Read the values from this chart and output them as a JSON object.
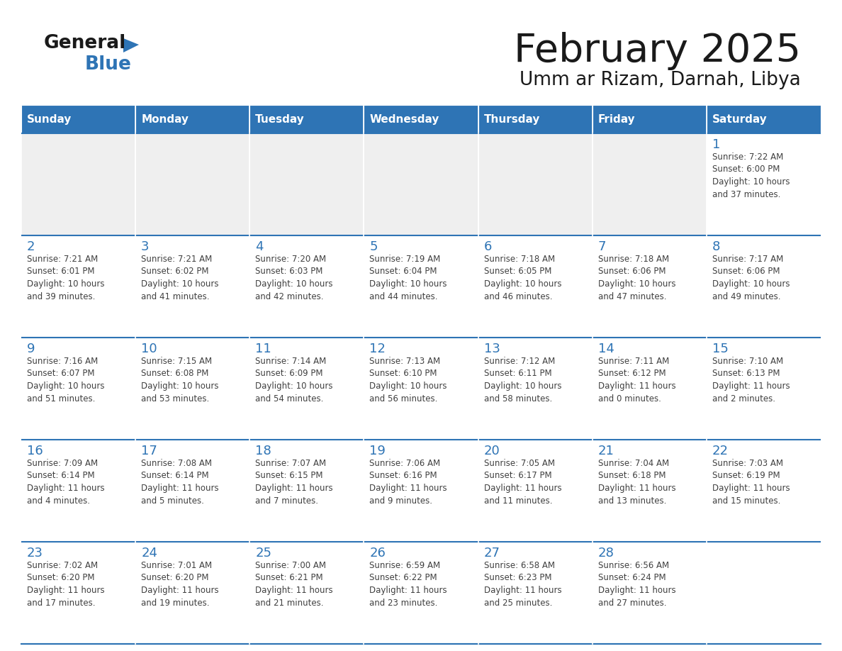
{
  "title": "February 2025",
  "subtitle": "Umm ar Rizam, Darnah, Libya",
  "header_bg": "#2E74B5",
  "header_text_color": "#FFFFFF",
  "cell_bg_white": "#FFFFFF",
  "cell_bg_gray": "#EFEFEF",
  "day_number_color": "#2E74B5",
  "text_color": "#404040",
  "border_color": "#2E74B5",
  "line_color": "#2E74B5",
  "days_of_week": [
    "Sunday",
    "Monday",
    "Tuesday",
    "Wednesday",
    "Thursday",
    "Friday",
    "Saturday"
  ],
  "calendar_data": [
    [
      null,
      null,
      null,
      null,
      null,
      null,
      {
        "day": 1,
        "sunrise": "7:22 AM",
        "sunset": "6:00 PM",
        "daylight": "10 hours\nand 37 minutes."
      }
    ],
    [
      {
        "day": 2,
        "sunrise": "7:21 AM",
        "sunset": "6:01 PM",
        "daylight": "10 hours\nand 39 minutes."
      },
      {
        "day": 3,
        "sunrise": "7:21 AM",
        "sunset": "6:02 PM",
        "daylight": "10 hours\nand 41 minutes."
      },
      {
        "day": 4,
        "sunrise": "7:20 AM",
        "sunset": "6:03 PM",
        "daylight": "10 hours\nand 42 minutes."
      },
      {
        "day": 5,
        "sunrise": "7:19 AM",
        "sunset": "6:04 PM",
        "daylight": "10 hours\nand 44 minutes."
      },
      {
        "day": 6,
        "sunrise": "7:18 AM",
        "sunset": "6:05 PM",
        "daylight": "10 hours\nand 46 minutes."
      },
      {
        "day": 7,
        "sunrise": "7:18 AM",
        "sunset": "6:06 PM",
        "daylight": "10 hours\nand 47 minutes."
      },
      {
        "day": 8,
        "sunrise": "7:17 AM",
        "sunset": "6:06 PM",
        "daylight": "10 hours\nand 49 minutes."
      }
    ],
    [
      {
        "day": 9,
        "sunrise": "7:16 AM",
        "sunset": "6:07 PM",
        "daylight": "10 hours\nand 51 minutes."
      },
      {
        "day": 10,
        "sunrise": "7:15 AM",
        "sunset": "6:08 PM",
        "daylight": "10 hours\nand 53 minutes."
      },
      {
        "day": 11,
        "sunrise": "7:14 AM",
        "sunset": "6:09 PM",
        "daylight": "10 hours\nand 54 minutes."
      },
      {
        "day": 12,
        "sunrise": "7:13 AM",
        "sunset": "6:10 PM",
        "daylight": "10 hours\nand 56 minutes."
      },
      {
        "day": 13,
        "sunrise": "7:12 AM",
        "sunset": "6:11 PM",
        "daylight": "10 hours\nand 58 minutes."
      },
      {
        "day": 14,
        "sunrise": "7:11 AM",
        "sunset": "6:12 PM",
        "daylight": "11 hours\nand 0 minutes."
      },
      {
        "day": 15,
        "sunrise": "7:10 AM",
        "sunset": "6:13 PM",
        "daylight": "11 hours\nand 2 minutes."
      }
    ],
    [
      {
        "day": 16,
        "sunrise": "7:09 AM",
        "sunset": "6:14 PM",
        "daylight": "11 hours\nand 4 minutes."
      },
      {
        "day": 17,
        "sunrise": "7:08 AM",
        "sunset": "6:14 PM",
        "daylight": "11 hours\nand 5 minutes."
      },
      {
        "day": 18,
        "sunrise": "7:07 AM",
        "sunset": "6:15 PM",
        "daylight": "11 hours\nand 7 minutes."
      },
      {
        "day": 19,
        "sunrise": "7:06 AM",
        "sunset": "6:16 PM",
        "daylight": "11 hours\nand 9 minutes."
      },
      {
        "day": 20,
        "sunrise": "7:05 AM",
        "sunset": "6:17 PM",
        "daylight": "11 hours\nand 11 minutes."
      },
      {
        "day": 21,
        "sunrise": "7:04 AM",
        "sunset": "6:18 PM",
        "daylight": "11 hours\nand 13 minutes."
      },
      {
        "day": 22,
        "sunrise": "7:03 AM",
        "sunset": "6:19 PM",
        "daylight": "11 hours\nand 15 minutes."
      }
    ],
    [
      {
        "day": 23,
        "sunrise": "7:02 AM",
        "sunset": "6:20 PM",
        "daylight": "11 hours\nand 17 minutes."
      },
      {
        "day": 24,
        "sunrise": "7:01 AM",
        "sunset": "6:20 PM",
        "daylight": "11 hours\nand 19 minutes."
      },
      {
        "day": 25,
        "sunrise": "7:00 AM",
        "sunset": "6:21 PM",
        "daylight": "11 hours\nand 21 minutes."
      },
      {
        "day": 26,
        "sunrise": "6:59 AM",
        "sunset": "6:22 PM",
        "daylight": "11 hours\nand 23 minutes."
      },
      {
        "day": 27,
        "sunrise": "6:58 AM",
        "sunset": "6:23 PM",
        "daylight": "11 hours\nand 25 minutes."
      },
      {
        "day": 28,
        "sunrise": "6:56 AM",
        "sunset": "6:24 PM",
        "daylight": "11 hours\nand 27 minutes."
      },
      null
    ]
  ]
}
